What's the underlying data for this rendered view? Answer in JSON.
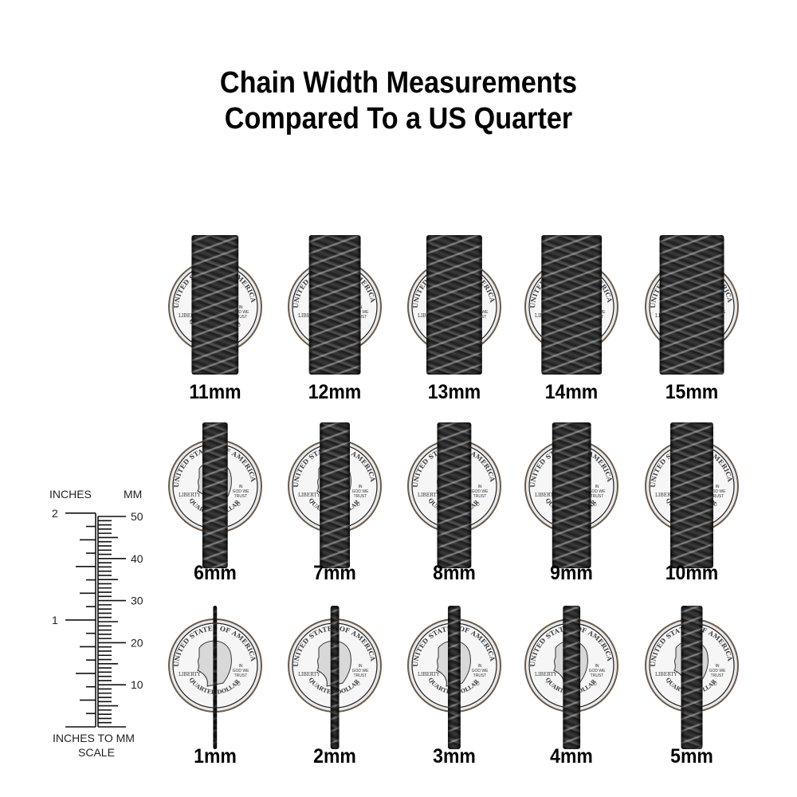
{
  "title": {
    "line1": "Chain Width Measurements",
    "line2": "Compared To a US Quarter"
  },
  "coin": {
    "top_text": "UNITED STATES OF AMERICA",
    "left_text": "LIBERTY",
    "motto": [
      "IN",
      "GOD WE",
      "TRUST"
    ],
    "bottom_text": "QUARTER DOLLAR",
    "mint_mark": "D"
  },
  "rows": [
    [
      {
        "width_mm": 11,
        "label": "11mm"
      },
      {
        "width_mm": 12,
        "label": "12mm"
      },
      {
        "width_mm": 13,
        "label": "13mm"
      },
      {
        "width_mm": 14,
        "label": "14mm"
      },
      {
        "width_mm": 15,
        "label": "15mm"
      }
    ],
    [
      {
        "width_mm": 6,
        "label": "6mm"
      },
      {
        "width_mm": 7,
        "label": "7mm"
      },
      {
        "width_mm": 8,
        "label": "8mm"
      },
      {
        "width_mm": 9,
        "label": "9mm"
      },
      {
        "width_mm": 10,
        "label": "10mm"
      }
    ],
    [
      {
        "width_mm": 1,
        "label": "1mm"
      },
      {
        "width_mm": 2,
        "label": "2mm"
      },
      {
        "width_mm": 3,
        "label": "3mm"
      },
      {
        "width_mm": 4,
        "label": "4mm"
      },
      {
        "width_mm": 5,
        "label": "5mm"
      }
    ]
  ],
  "ruler": {
    "inches_header": "INCHES",
    "mm_header": "MM",
    "inch_labels": [
      "1",
      "2"
    ],
    "mm_labels": [
      "10",
      "20",
      "30",
      "40",
      "50"
    ],
    "caption_line1": "INCHES TO MM",
    "caption_line2": "SCALE"
  }
}
